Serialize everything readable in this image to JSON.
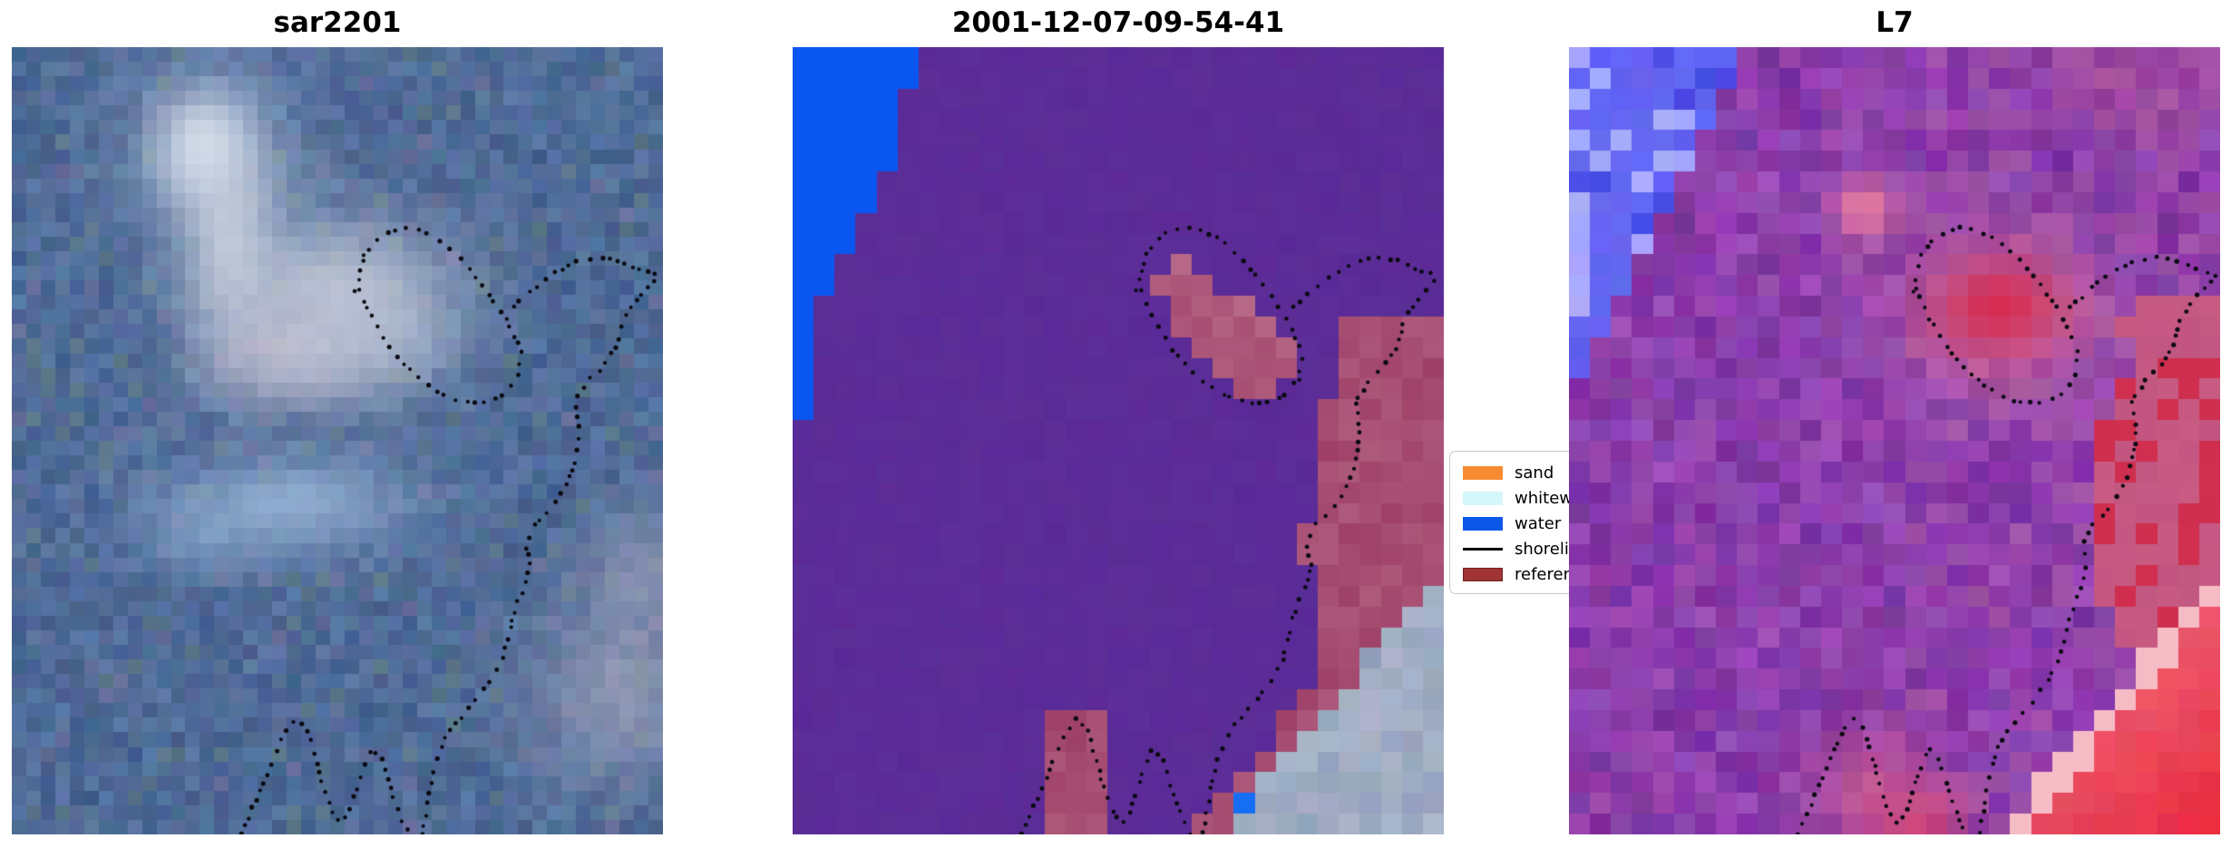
{
  "figure": {
    "background": "#ffffff",
    "kind": "three-panel satellite image comparison with shoreline overlay"
  },
  "legend": {
    "entries": [
      {
        "label": "sand",
        "swatch": "#f78b31",
        "kind": "patch"
      },
      {
        "label": "whitew",
        "swatch": "#d5f6fb",
        "kind": "patch"
      },
      {
        "label": "water",
        "swatch": "#0b57e8",
        "kind": "patch"
      },
      {
        "label": "shoreli",
        "swatch": "#000000",
        "kind": "line"
      },
      {
        "label": "referen",
        "swatch": "#a03434",
        "border": "#6e2222",
        "kind": "patch"
      }
    ]
  },
  "chart_data": {
    "type": "image",
    "title": "",
    "description": "Three co-registered coastal image tiles: a SAR backscatter composite (sar2201), a classified scene dated 2001-12-07-09-54-41 (water/land classes), and a Landsat-7 false-colour tile (L7). A dotted black shoreline contour is overlaid on all three panels; a legend lists classes sand, whitewater, water, shoreline, reference.",
    "panels": [
      {
        "title": "sar2201",
        "kind": "sar",
        "seed": 7,
        "grid": {
          "cols": 45,
          "rows": 54
        },
        "base": {
          "rgb": [
            79,
            107,
            151
          ],
          "noise": 13,
          "jitter": 7
        },
        "tints": [
          {
            "rgb": [
              104,
              132,
              122
            ],
            "p": 0.045,
            "mix": 0.45
          },
          {
            "rgb": [
              128,
              112,
              156
            ],
            "p": 0.035,
            "mix": 0.4
          }
        ],
        "blobs": [
          {
            "cx": 0.295,
            "cy": 0.128,
            "sx": 0.042,
            "sy": 0.04,
            "rgb": [
              253,
              253,
              249
            ],
            "w": 1.0
          },
          {
            "cx": 0.3,
            "cy": 0.14,
            "sx": 0.085,
            "sy": 0.075,
            "rgb": [
              188,
              202,
              224
            ],
            "w": 0.7
          },
          {
            "cx": 0.335,
            "cy": 0.25,
            "sx": 0.048,
            "sy": 0.085,
            "rgb": [
              214,
              218,
              228
            ],
            "w": 0.75
          },
          {
            "cx": 0.5,
            "cy": 0.305,
            "sx": 0.125,
            "sy": 0.062,
            "rgb": [
              211,
              214,
              226
            ],
            "w": 0.75
          },
          {
            "cx": 0.43,
            "cy": 0.395,
            "sx": 0.1,
            "sy": 0.05,
            "rgb": [
              221,
              212,
              224
            ],
            "w": 0.65
          },
          {
            "cx": 0.575,
            "cy": 0.37,
            "sx": 0.085,
            "sy": 0.048,
            "rgb": [
              198,
              205,
              220
            ],
            "w": 0.5
          },
          {
            "cx": 0.43,
            "cy": 0.58,
            "sx": 0.13,
            "sy": 0.042,
            "rgb": [
              163,
              191,
              224
            ],
            "w": 0.75
          },
          {
            "cx": 0.295,
            "cy": 0.625,
            "sx": 0.065,
            "sy": 0.032,
            "rgb": [
              148,
              178,
              214
            ],
            "w": 0.5
          },
          {
            "cx": 0.93,
            "cy": 0.82,
            "sx": 0.095,
            "sy": 0.08,
            "rgb": [
              198,
              189,
              205
            ],
            "w": 0.5
          },
          {
            "cx": 0.965,
            "cy": 0.66,
            "sx": 0.06,
            "sy": 0.06,
            "rgb": [
              192,
              183,
              200
            ],
            "w": 0.4
          }
        ]
      },
      {
        "title": "2001-12-07-09-54-41",
        "kind": "classes",
        "seed": 11,
        "grid": {
          "cols": 31,
          "rows": 38
        },
        "purple": [
          91,
          44,
          151
        ],
        "water": {
          "rgb": [
            10,
            86,
            240
          ],
          "u_top": 0.205,
          "v_end": 0.468
        },
        "rose": [
          158,
          64,
          104
        ],
        "rose_light": [
          186,
          110,
          138
        ],
        "loop_blobs": [
          {
            "cx": 0.6,
            "cy": 0.31,
            "rx": 0.04,
            "ry": 0.034
          },
          {
            "cx": 0.65,
            "cy": 0.345,
            "rx": 0.058,
            "ry": 0.04
          },
          {
            "cx": 0.715,
            "cy": 0.395,
            "rx": 0.066,
            "ry": 0.044
          }
        ],
        "band": {
          "u_base": 0.88,
          "depth": 0.095,
          "v0": 0.33,
          "v1": 0.89,
          "jitter": 0.05
        },
        "rects": [
          [
            0.845,
            0.335,
            1.0,
            0.405
          ],
          [
            0.775,
            0.61,
            0.83,
            0.655
          ],
          [
            0.885,
            0.61,
            0.93,
            0.655
          ],
          [
            0.4,
            0.84,
            0.49,
            1.0
          ]
        ],
        "grey": {
          "rgb": [
            148,
            162,
            188
          ],
          "light": [
            176,
            186,
            204
          ],
          "u0": 0.66,
          "slope": 0.99,
          "rim": 0.05
        },
        "blue_dot": {
          "u": 0.705,
          "v": 0.954,
          "rgb": [
            22,
            110,
            245
          ]
        }
      },
      {
        "title": "L7",
        "kind": "l7",
        "seed": 23,
        "grid": {
          "cols": 31,
          "rows": 38
        },
        "base": {
          "rgb": [
            139,
            62,
            171
          ],
          "noise": 18,
          "jitter": 9
        },
        "rose_tint": {
          "rgb": [
            172,
            96,
            162
          ],
          "p": 0.22,
          "mix": 0.5,
          "u_min": 0.5
        },
        "wedge": {
          "rgb": [
            100,
            100,
            242
          ],
          "light": [
            168,
            168,
            252
          ],
          "dark": [
            72,
            72,
            226
          ],
          "u_top": 0.285,
          "v_end": 0.45,
          "p_light": 0.3,
          "p_dark": 0.15
        },
        "blobs": [
          {
            "cx": 0.455,
            "cy": 0.205,
            "sx": 0.034,
            "sy": 0.03,
            "rgb": [
              240,
              132,
              150
            ],
            "w": 0.85
          },
          {
            "cx": 0.665,
            "cy": 0.34,
            "sx": 0.115,
            "sy": 0.072,
            "rgb": [
              226,
              140,
              160
            ],
            "w": 0.65
          },
          {
            "cx": 0.66,
            "cy": 0.33,
            "sx": 0.068,
            "sy": 0.042,
            "rgb": [
              214,
              38,
              76
            ],
            "w": 0.92
          },
          {
            "cx": 0.47,
            "cy": 0.945,
            "sx": 0.068,
            "sy": 0.055,
            "rgb": [
              226,
              100,
              134
            ],
            "w": 0.6
          },
          {
            "cx": 0.545,
            "cy": 1.0,
            "sx": 0.05,
            "sy": 0.04,
            "rgb": [
              232,
              62,
              92
            ],
            "w": 0.6
          },
          {
            "cx": 0.86,
            "cy": 0.045,
            "sx": 0.085,
            "sy": 0.045,
            "rgb": [
              188,
              92,
              142
            ],
            "w": 0.4
          }
        ],
        "band": {
          "u_base": 0.872,
          "depth": 0.055,
          "v0": 0.32,
          "v1": 0.82,
          "jitter": 0.05,
          "rgb": [
            206,
            92,
            122
          ],
          "red": [
            210,
            36,
            66
          ],
          "p_red": 0.2,
          "p_red_hot": 0.5,
          "hot_v0": 0.42,
          "hot_v1": 0.62
        },
        "corner": {
          "u0": 0.66,
          "slope": 0.99,
          "edge": [
            246,
            188,
            198
          ],
          "from": [
            236,
            112,
            134
          ],
          "to": [
            233,
            26,
            46
          ]
        }
      }
    ],
    "shoreline_overlay": {
      "color": "#0a0a12",
      "dot_radius": 2.0,
      "dot_spacing": 10.5,
      "segments": [
        [
          [
            0.528,
            0.31
          ],
          [
            0.542,
            0.262
          ],
          [
            0.568,
            0.238
          ],
          [
            0.608,
            0.228
          ],
          [
            0.65,
            0.24
          ],
          [
            0.69,
            0.268
          ],
          [
            0.726,
            0.305
          ],
          [
            0.76,
            0.345
          ],
          [
            0.782,
            0.388
          ],
          [
            0.778,
            0.422
          ],
          [
            0.752,
            0.445
          ],
          [
            0.716,
            0.453
          ],
          [
            0.678,
            0.448
          ],
          [
            0.642,
            0.432
          ],
          [
            0.608,
            0.408
          ],
          [
            0.578,
            0.378
          ],
          [
            0.554,
            0.345
          ],
          [
            0.537,
            0.314
          ],
          [
            0.53,
            0.296
          ]
        ],
        [
          [
            0.77,
            0.33
          ],
          [
            0.802,
            0.306
          ],
          [
            0.834,
            0.287
          ],
          [
            0.866,
            0.273
          ],
          [
            0.9,
            0.267
          ],
          [
            0.934,
            0.272
          ],
          [
            0.964,
            0.283
          ],
          [
            1.0,
            0.292
          ]
        ],
        [
          [
            0.986,
            0.298
          ],
          [
            0.962,
            0.318
          ],
          [
            0.94,
            0.345
          ],
          [
            0.93,
            0.376
          ],
          [
            0.91,
            0.405
          ],
          [
            0.884,
            0.424
          ],
          [
            0.864,
            0.452
          ],
          [
            0.872,
            0.486
          ],
          [
            0.866,
            0.522
          ],
          [
            0.854,
            0.554
          ],
          [
            0.828,
            0.588
          ],
          [
            0.802,
            0.608
          ],
          [
            0.788,
            0.632
          ],
          [
            0.796,
            0.658
          ],
          [
            0.786,
            0.688
          ],
          [
            0.772,
            0.716
          ],
          [
            0.762,
            0.748
          ],
          [
            0.752,
            0.78
          ],
          [
            0.73,
            0.812
          ],
          [
            0.7,
            0.842
          ],
          [
            0.672,
            0.868
          ],
          [
            0.655,
            0.896
          ],
          [
            0.646,
            0.928
          ],
          [
            0.638,
            0.962
          ],
          [
            0.63,
            1.0
          ]
        ],
        [
          [
            0.352,
            1.0
          ],
          [
            0.368,
            0.97
          ],
          [
            0.385,
            0.938
          ],
          [
            0.402,
            0.903
          ],
          [
            0.418,
            0.872
          ],
          [
            0.436,
            0.853
          ],
          [
            0.452,
            0.864
          ],
          [
            0.462,
            0.892
          ],
          [
            0.471,
            0.92
          ],
          [
            0.481,
            0.948
          ],
          [
            0.492,
            0.972
          ],
          [
            0.505,
            0.988
          ],
          [
            0.518,
            0.972
          ],
          [
            0.529,
            0.944
          ],
          [
            0.54,
            0.914
          ],
          [
            0.553,
            0.89
          ],
          [
            0.567,
            0.903
          ],
          [
            0.578,
            0.932
          ],
          [
            0.59,
            0.962
          ],
          [
            0.601,
            0.985
          ],
          [
            0.61,
            1.0
          ]
        ]
      ]
    }
  }
}
